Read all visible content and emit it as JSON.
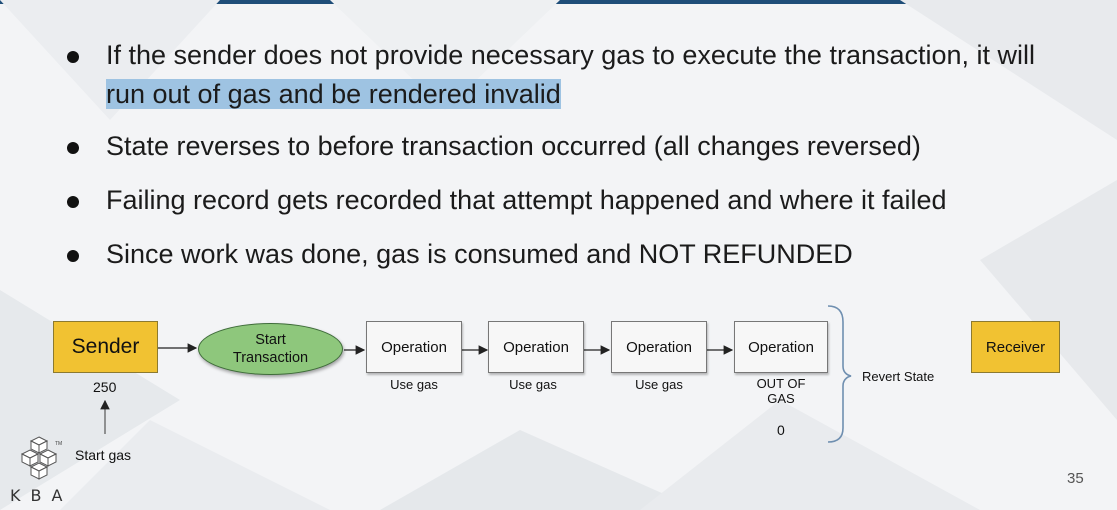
{
  "bullets": [
    {
      "pre": "If the sender does not provide necessary gas to execute the transaction, it will ",
      "highlight": "run out of gas and be rendered invalid"
    },
    {
      "text": "State reverses to before transaction occurred (all changes reversed)"
    },
    {
      "text": "Failing record gets recorded that attempt happened and where it failed"
    },
    {
      "text": "Since work was done, gas is consumed and NOT REFUNDED"
    }
  ],
  "diagram": {
    "sender": "Sender",
    "sender_value": "250",
    "start_gas": "Start gas",
    "start_transaction_line1": "Start",
    "start_transaction_line2": "Transaction",
    "operations": [
      {
        "label": "Operation",
        "note": "Use gas"
      },
      {
        "label": "Operation",
        "note": "Use gas"
      },
      {
        "label": "Operation",
        "note": "Use gas"
      },
      {
        "label": "Operation",
        "note_line1": "OUT OF",
        "note_line2": "GAS",
        "value": "0"
      }
    ],
    "revert_state": "Revert State",
    "receiver": "Receiver"
  },
  "footer": {
    "logo_text": "KBA",
    "logo_tm": "TM",
    "slide_number": "35"
  },
  "colors": {
    "accent_yellow": "#f1c232",
    "ellipse_green": "#8ec77c",
    "highlight_blue": "#9ec3e2",
    "top_bar": "#1f4e79"
  }
}
